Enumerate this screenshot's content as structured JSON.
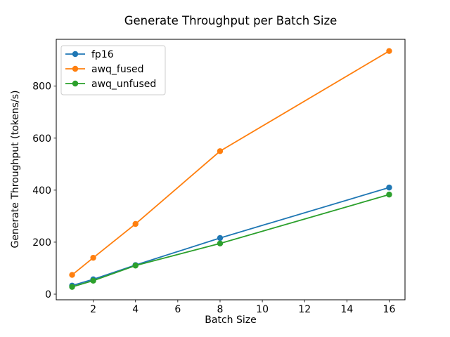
{
  "chart_data": {
    "type": "line",
    "title": "Generate Throughput per Batch Size",
    "xlabel": "Batch Size",
    "ylabel": "Generate Throughput (tokens/s)",
    "x": [
      1,
      2,
      4,
      8,
      16
    ],
    "series": [
      {
        "name": "fp16",
        "color": "#1f77b4",
        "values": [
          33,
          57,
          112,
          216,
          410
        ]
      },
      {
        "name": "awq_fused",
        "color": "#ff7f0e",
        "values": [
          74,
          140,
          270,
          550,
          935
        ]
      },
      {
        "name": "awq_unfused",
        "color": "#2ca02c",
        "values": [
          28,
          52,
          110,
          195,
          383
        ]
      }
    ],
    "xlim": [
      0.25,
      16.75
    ],
    "ylim": [
      -21.6,
      980
    ],
    "xticks": [
      2,
      4,
      6,
      8,
      10,
      12,
      14,
      16
    ],
    "yticks": [
      0,
      200,
      400,
      600,
      800
    ],
    "grid": false,
    "legend": {
      "position": "upper left",
      "entries": [
        "fp16",
        "awq_fused",
        "awq_unfused"
      ]
    },
    "frame_color": "#000000",
    "legend_border_color": "#cccccc",
    "background_color": "#ffffff"
  }
}
